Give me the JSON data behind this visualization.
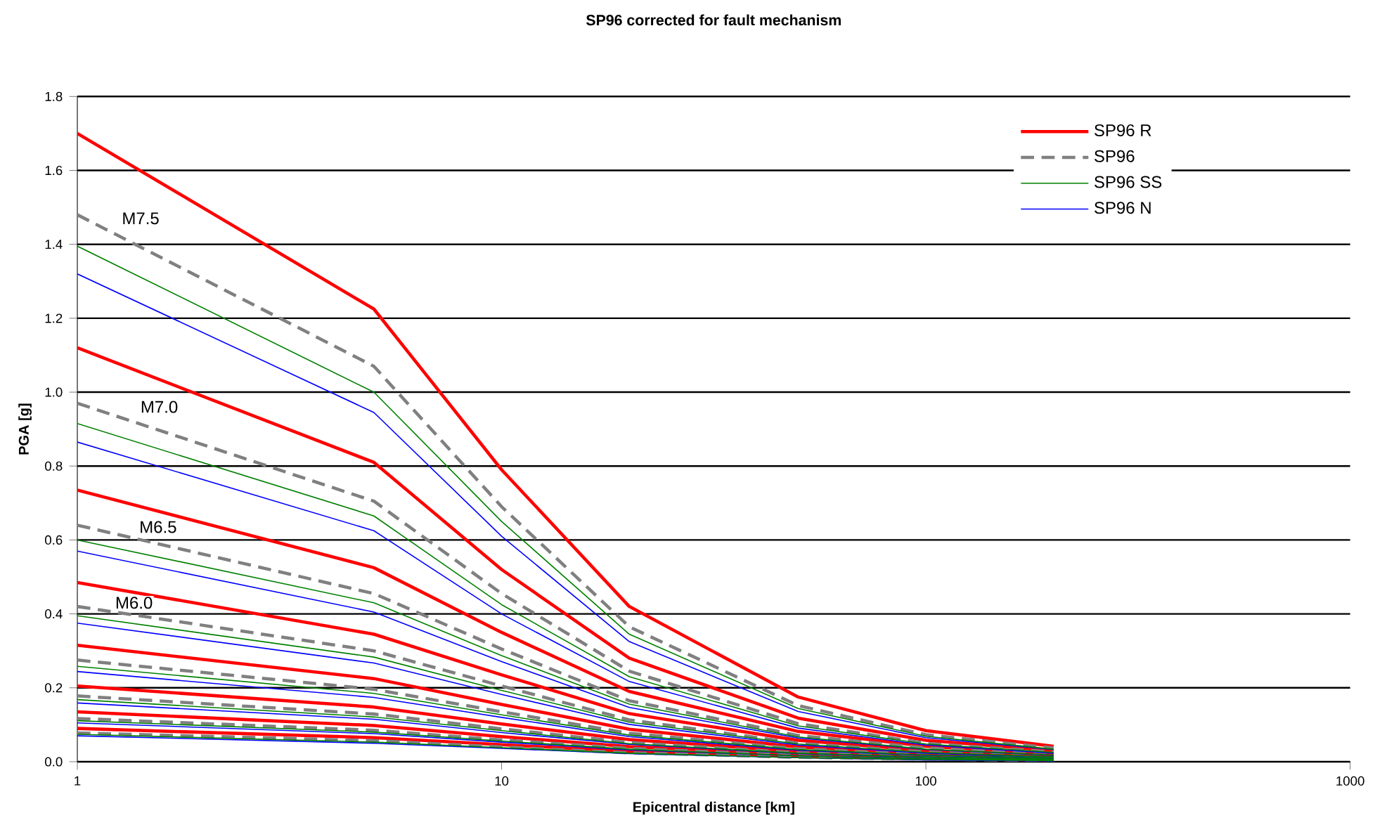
{
  "chart_data": {
    "type": "line",
    "title": "SP96 corrected for fault mechanism",
    "xlabel": "Epicentral distance [km]",
    "ylabel": "PGA [g]",
    "x": [
      1,
      5,
      10,
      20,
      50,
      100,
      200
    ],
    "log": "x",
    "xlim": [
      1,
      1000
    ],
    "xticks": [
      1,
      10,
      100,
      1000
    ],
    "ylim": [
      0,
      1.8
    ],
    "yticks": [
      {
        "value": 0,
        "label": "0.0"
      },
      0.2,
      0.4,
      0.6,
      0.8,
      {
        "value": 1,
        "label": "1.0"
      },
      1.2,
      1.4,
      1.6,
      1.8
    ],
    "grid": "y",
    "legend": "top right",
    "marker": "none",
    "annotations": [
      {
        "text": "M7.5",
        "x": 1.41,
        "y": 1.47
      },
      {
        "text": "M7.0",
        "x": 1.56,
        "y": 0.96
      },
      {
        "text": "M6.5",
        "x": 1.55,
        "y": 0.635
      },
      {
        "text": "M6.0",
        "x": 1.36,
        "y": 0.43
      }
    ],
    "series": [
      {
        "name": "SP96 R",
        "color": "#ff0000",
        "line_style": "solid",
        "values": [
          1.7,
          1.225,
          0.79,
          0.42,
          0.175,
          0.084,
          0.042
        ]
      },
      {
        "name": "SP96",
        "color": "#808080",
        "line_style": "dashed",
        "values": [
          1.48,
          1.07,
          0.69,
          0.365,
          0.152,
          0.073,
          0.037
        ]
      },
      {
        "name": "SP96 SS",
        "color": "#008000",
        "line_style": "solid",
        "values": [
          1.395,
          1.0,
          0.65,
          0.345,
          0.144,
          0.069,
          0.034
        ]
      },
      {
        "name": "SP96 N",
        "color": "#0000ff",
        "line_style": "solid",
        "values": [
          1.32,
          0.945,
          0.61,
          0.325,
          0.136,
          0.065,
          0.033
        ]
      },
      {
        "color": "#ff0000",
        "line_style": "solid",
        "values": [
          1.12,
          0.81,
          0.52,
          0.28,
          0.118,
          0.058,
          0.03
        ]
      },
      {
        "color": "#808080",
        "line_style": "dashed",
        "values": [
          0.97,
          0.705,
          0.455,
          0.245,
          0.103,
          0.05,
          0.026
        ]
      },
      {
        "color": "#008000",
        "line_style": "solid",
        "values": [
          0.915,
          0.665,
          0.425,
          0.23,
          0.097,
          0.048,
          0.025
        ]
      },
      {
        "color": "#0000ff",
        "line_style": "solid",
        "values": [
          0.865,
          0.625,
          0.4,
          0.217,
          0.091,
          0.045,
          0.023
        ]
      },
      {
        "color": "#ff0000",
        "line_style": "solid",
        "values": [
          0.735,
          0.525,
          0.35,
          0.19,
          0.082,
          0.042,
          0.022
        ]
      },
      {
        "color": "#808080",
        "line_style": "dashed",
        "values": [
          0.64,
          0.455,
          0.305,
          0.165,
          0.071,
          0.037,
          0.019
        ]
      },
      {
        "color": "#008000",
        "line_style": "solid",
        "values": [
          0.6,
          0.43,
          0.287,
          0.156,
          0.067,
          0.034,
          0.018
        ]
      },
      {
        "color": "#0000ff",
        "line_style": "solid",
        "values": [
          0.57,
          0.405,
          0.271,
          0.147,
          0.064,
          0.033,
          0.017
        ]
      },
      {
        "color": "#ff0000",
        "line_style": "solid",
        "values": [
          0.485,
          0.345,
          0.235,
          0.13,
          0.058,
          0.03,
          0.016
        ]
      },
      {
        "color": "#808080",
        "line_style": "dashed",
        "values": [
          0.42,
          0.3,
          0.205,
          0.113,
          0.05,
          0.026,
          0.014
        ]
      },
      {
        "color": "#008000",
        "line_style": "solid",
        "values": [
          0.395,
          0.283,
          0.193,
          0.107,
          0.048,
          0.025,
          0.013
        ]
      },
      {
        "color": "#0000ff",
        "line_style": "solid",
        "values": [
          0.375,
          0.267,
          0.182,
          0.101,
          0.045,
          0.023,
          0.012
        ]
      },
      {
        "color": "#ff0000",
        "line_style": "solid",
        "values": [
          0.315,
          0.225,
          0.155,
          0.088,
          0.04,
          0.022,
          0.012
        ]
      },
      {
        "color": "#808080",
        "line_style": "dashed",
        "values": [
          0.275,
          0.196,
          0.135,
          0.077,
          0.035,
          0.019,
          0.01
        ]
      },
      {
        "color": "#008000",
        "line_style": "solid",
        "values": [
          0.258,
          0.185,
          0.127,
          0.072,
          0.033,
          0.018,
          0.01
        ]
      },
      {
        "color": "#0000ff",
        "line_style": "solid",
        "values": [
          0.244,
          0.174,
          0.12,
          0.068,
          0.031,
          0.017,
          0.009
        ]
      },
      {
        "color": "#ff0000",
        "line_style": "solid",
        "values": [
          0.205,
          0.148,
          0.102,
          0.06,
          0.028,
          0.016,
          0.009
        ]
      },
      {
        "color": "#808080",
        "line_style": "dashed",
        "values": [
          0.178,
          0.129,
          0.089,
          0.052,
          0.024,
          0.014,
          0.008
        ]
      },
      {
        "color": "#008000",
        "line_style": "solid",
        "values": [
          0.168,
          0.121,
          0.084,
          0.049,
          0.023,
          0.013,
          0.007
        ]
      },
      {
        "color": "#0000ff",
        "line_style": "solid",
        "values": [
          0.159,
          0.115,
          0.079,
          0.047,
          0.022,
          0.012,
          0.007
        ]
      },
      {
        "color": "#ff0000",
        "line_style": "solid",
        "values": [
          0.135,
          0.098,
          0.068,
          0.041,
          0.02,
          0.011,
          0.006
        ]
      },
      {
        "color": "#808080",
        "line_style": "dashed",
        "values": [
          0.117,
          0.085,
          0.059,
          0.036,
          0.017,
          0.01,
          0.005
        ]
      },
      {
        "color": "#008000",
        "line_style": "solid",
        "values": [
          0.111,
          0.08,
          0.056,
          0.034,
          0.016,
          0.009,
          0.005
        ]
      },
      {
        "color": "#0000ff",
        "line_style": "solid",
        "values": [
          0.105,
          0.076,
          0.053,
          0.032,
          0.016,
          0.008,
          0.004
        ]
      },
      {
        "color": "#ff0000",
        "line_style": "solid",
        "values": [
          0.09,
          0.065,
          0.046,
          0.028,
          0.014,
          0.008,
          0.004
        ]
      },
      {
        "color": "#808080",
        "line_style": "dashed",
        "values": [
          0.078,
          0.057,
          0.04,
          0.024,
          0.012,
          0.007,
          0.003
        ]
      },
      {
        "color": "#008000",
        "line_style": "solid",
        "values": [
          0.074,
          0.053,
          0.038,
          0.023,
          0.011,
          0.006,
          0.003
        ]
      },
      {
        "color": "#0000ff",
        "line_style": "solid",
        "values": [
          0.07,
          0.05,
          0.036,
          0.022,
          0.011,
          0.005,
          0.002
        ]
      }
    ]
  }
}
